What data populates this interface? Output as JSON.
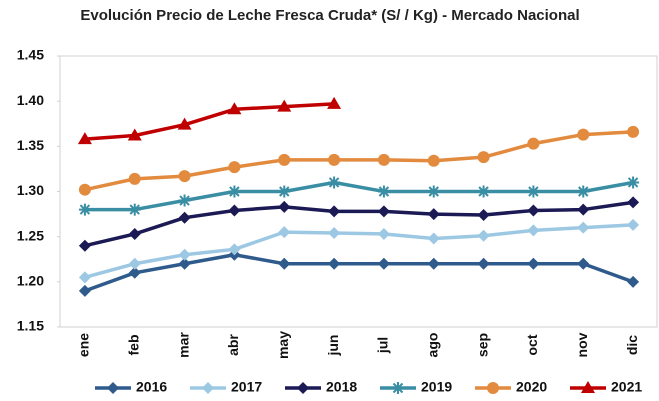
{
  "chart_data": {
    "type": "line",
    "title": "Evolución Precio de Leche Fresca Cruda* (S/ / Kg) - Mercado Nacional",
    "categories": [
      "ene",
      "feb",
      "mar",
      "abr",
      "may",
      "jun",
      "jul",
      "ago",
      "sep",
      "oct",
      "nov",
      "dic"
    ],
    "series": [
      {
        "name": "2016",
        "color": "#2e5a8c",
        "marker": "diamond",
        "values": [
          1.19,
          1.21,
          1.22,
          1.23,
          1.22,
          1.22,
          1.22,
          1.22,
          1.22,
          1.22,
          1.22,
          1.2
        ]
      },
      {
        "name": "2017",
        "color": "#9dc8e4",
        "marker": "diamond",
        "values": [
          1.205,
          1.22,
          1.23,
          1.236,
          1.255,
          1.254,
          1.253,
          1.248,
          1.251,
          1.257,
          1.26,
          1.263
        ]
      },
      {
        "name": "2018",
        "color": "#1c1a55",
        "marker": "diamond",
        "values": [
          1.24,
          1.253,
          1.271,
          1.279,
          1.283,
          1.278,
          1.278,
          1.275,
          1.274,
          1.279,
          1.28,
          1.288
        ]
      },
      {
        "name": "2019",
        "color": "#3a8ea3",
        "marker": "star",
        "values": [
          1.28,
          1.28,
          1.29,
          1.3,
          1.3,
          1.31,
          1.3,
          1.3,
          1.3,
          1.3,
          1.3,
          1.31
        ]
      },
      {
        "name": "2020",
        "color": "#e28a3e",
        "marker": "circle",
        "values": [
          1.302,
          1.314,
          1.317,
          1.327,
          1.335,
          1.335,
          1.335,
          1.334,
          1.338,
          1.353,
          1.363,
          1.366
        ]
      },
      {
        "name": "2021",
        "color": "#c00000",
        "marker": "triangle",
        "values": [
          1.358,
          1.362,
          1.374,
          1.391,
          1.394,
          1.397,
          null,
          null,
          null,
          null,
          null,
          null
        ]
      }
    ],
    "ylim": [
      1.15,
      1.45
    ],
    "yticks": [
      1.15,
      {
        "value": 1.2,
        "label": "1.20"
      },
      1.25,
      {
        "value": 1.3,
        "label": "1.30"
      },
      1.35,
      {
        "value": 1.4,
        "label": "1.40"
      },
      1.45
    ],
    "grid": false,
    "legend": "bottom"
  }
}
